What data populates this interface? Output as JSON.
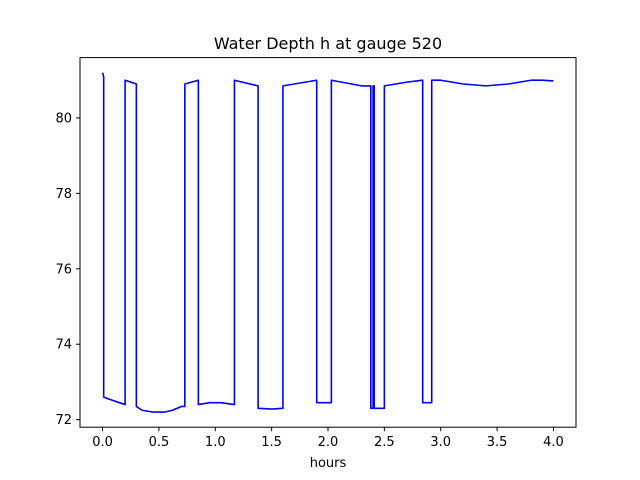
{
  "chart_data": {
    "type": "line",
    "title": "Water Depth h at gauge 520",
    "xlabel": "hours",
    "ylabel": "",
    "xlim": [
      -0.2,
      4.2
    ],
    "ylim": [
      71.8,
      81.6
    ],
    "xticks": [
      0.0,
      0.5,
      1.0,
      1.5,
      2.0,
      2.5,
      3.0,
      3.5,
      4.0
    ],
    "xtick_labels": [
      "0.0",
      "0.5",
      "1.0",
      "1.5",
      "2.0",
      "2.5",
      "3.0",
      "3.5",
      "4.0"
    ],
    "yticks": [
      72,
      74,
      76,
      78,
      80
    ],
    "ytick_labels": [
      "72",
      "74",
      "76",
      "78",
      "80"
    ],
    "grid": false,
    "series": [
      {
        "color": "#0000ff",
        "x": [
          0.0,
          0.01,
          0.01,
          0.05,
          0.1,
          0.15,
          0.2,
          0.2,
          0.3,
          0.3,
          0.35,
          0.45,
          0.55,
          0.62,
          0.7,
          0.73,
          0.73,
          0.85,
          0.85,
          0.95,
          1.05,
          1.17,
          1.17,
          1.38,
          1.38,
          1.5,
          1.6,
          1.6,
          1.9,
          1.9,
          2.03,
          2.03,
          2.3,
          2.38,
          2.38,
          2.4,
          2.4,
          2.41,
          2.41,
          2.5,
          2.5,
          2.7,
          2.84,
          2.84,
          2.92,
          2.92,
          3.0,
          3.2,
          3.4,
          3.6,
          3.8,
          3.9,
          4.0
        ],
        "y": [
          81.2,
          81.1,
          72.6,
          72.55,
          72.5,
          72.45,
          72.4,
          81.0,
          80.9,
          72.35,
          72.25,
          72.2,
          72.2,
          72.25,
          72.35,
          72.35,
          80.9,
          81.0,
          72.4,
          72.45,
          72.45,
          72.4,
          81.0,
          80.85,
          72.3,
          72.28,
          72.3,
          80.85,
          81.0,
          72.45,
          72.45,
          81.0,
          80.85,
          80.85,
          72.3,
          72.3,
          80.85,
          80.85,
          72.3,
          72.3,
          80.85,
          80.95,
          81.0,
          72.45,
          72.45,
          81.0,
          81.0,
          80.9,
          80.85,
          80.9,
          81.0,
          81.0,
          80.98
        ]
      }
    ]
  }
}
